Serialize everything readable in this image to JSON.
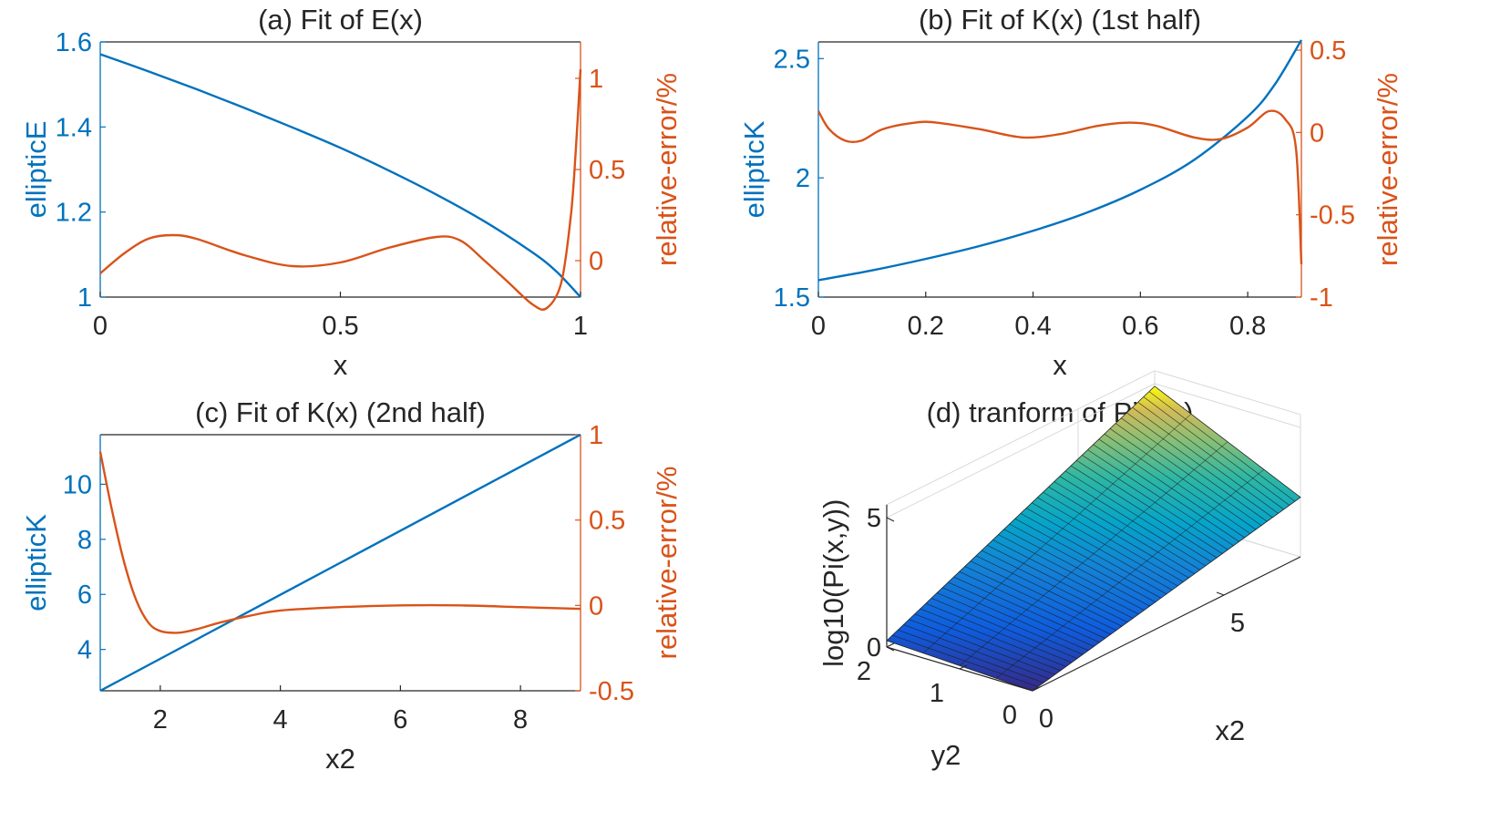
{
  "colors": {
    "blue": "#0072BD",
    "orange": "#D95319",
    "axis": "#262626"
  },
  "chart_data": [
    {
      "id": "a",
      "type": "line",
      "title": "(a) Fit of E(x)",
      "xlabel": "x",
      "ylabel_left": "ellipticE",
      "ylabel_right": "relative-error/%",
      "xlim": [
        0,
        1
      ],
      "ylim_left": [
        1,
        1.6
      ],
      "ylim_right": [
        -0.2,
        1.2
      ],
      "xticks": [
        "0",
        "0.5",
        "1"
      ],
      "xtick_values": [
        0,
        0.5,
        1
      ],
      "yticks_left": [
        "1",
        "1.2",
        "1.4",
        "1.6"
      ],
      "ytick_values_left": [
        1,
        1.2,
        1.4,
        1.6
      ],
      "yticks_right": [
        "0",
        "0.5",
        "1"
      ],
      "ytick_values_right": [
        0,
        0.5,
        1
      ],
      "series": [
        {
          "name": "ellipticE",
          "axis": "left",
          "color": "#0072BD",
          "x": [
            0,
            0.1,
            0.2,
            0.3,
            0.4,
            0.5,
            0.6,
            0.7,
            0.8,
            0.9,
            0.95,
            1
          ],
          "y": [
            1.571,
            1.531,
            1.489,
            1.445,
            1.399,
            1.351,
            1.298,
            1.241,
            1.178,
            1.105,
            1.06,
            1.0
          ]
        },
        {
          "name": "relative-error",
          "axis": "right",
          "color": "#D95319",
          "x": [
            0,
            0.05,
            0.1,
            0.15,
            0.2,
            0.3,
            0.4,
            0.5,
            0.6,
            0.7,
            0.75,
            0.8,
            0.85,
            0.9,
            0.93,
            0.96,
            0.98,
            0.99,
            1
          ],
          "y": [
            -0.07,
            0.04,
            0.12,
            0.14,
            0.12,
            0.03,
            -0.03,
            -0.01,
            0.07,
            0.13,
            0.11,
            0.0,
            -0.12,
            -0.24,
            -0.26,
            -0.12,
            0.25,
            0.6,
            1.05
          ]
        }
      ]
    },
    {
      "id": "b",
      "type": "line",
      "title": "(b) Fit of K(x) (1st half)",
      "xlabel": "x",
      "ylabel_left": "ellipticK",
      "ylabel_right": "relative-error/%",
      "xlim": [
        0,
        0.9
      ],
      "ylim_left": [
        1.5,
        2.57
      ],
      "ylim_right": [
        -1,
        0.55
      ],
      "xticks": [
        "0",
        "0.2",
        "0.4",
        "0.6",
        "0.8"
      ],
      "xtick_values": [
        0,
        0.2,
        0.4,
        0.6,
        0.8
      ],
      "yticks_left": [
        "1.5",
        "2",
        "2.5"
      ],
      "ytick_values_left": [
        1.5,
        2,
        2.5
      ],
      "yticks_right": [
        "-1",
        "-0.5",
        "0",
        "0.5"
      ],
      "ytick_values_right": [
        -1,
        -0.5,
        0,
        0.5
      ],
      "series": [
        {
          "name": "ellipticK",
          "axis": "left",
          "color": "#0072BD",
          "x": [
            0,
            0.1,
            0.2,
            0.3,
            0.4,
            0.5,
            0.6,
            0.7,
            0.8,
            0.85,
            0.9
          ],
          "y": [
            1.571,
            1.612,
            1.66,
            1.714,
            1.778,
            1.854,
            1.95,
            2.075,
            2.257,
            2.39,
            2.578
          ]
        },
        {
          "name": "relative-error",
          "axis": "right",
          "color": "#D95319",
          "x": [
            0,
            0.02,
            0.05,
            0.08,
            0.12,
            0.18,
            0.22,
            0.3,
            0.38,
            0.45,
            0.52,
            0.58,
            0.63,
            0.7,
            0.75,
            0.8,
            0.84,
            0.87,
            0.89,
            0.9
          ],
          "y": [
            0.13,
            0.02,
            -0.05,
            -0.05,
            0.02,
            0.06,
            0.06,
            0.02,
            -0.03,
            -0.01,
            0.04,
            0.06,
            0.04,
            -0.03,
            -0.04,
            0.03,
            0.13,
            0.08,
            -0.1,
            -0.8
          ]
        }
      ]
    },
    {
      "id": "c",
      "type": "line",
      "title": "(c) Fit of K(x) (2nd half)",
      "xlabel": "x2",
      "ylabel_left": "ellipticK",
      "ylabel_right": "relative-error/%",
      "xlim": [
        1,
        9
      ],
      "ylim_left": [
        2.5,
        11.8
      ],
      "ylim_right": [
        -0.5,
        1
      ],
      "xticks": [
        "2",
        "4",
        "6",
        "8"
      ],
      "xtick_values": [
        2,
        4,
        6,
        8
      ],
      "yticks_left": [
        "4",
        "6",
        "8",
        "10"
      ],
      "ytick_values_left": [
        4,
        6,
        8,
        10
      ],
      "yticks_right": [
        "-0.5",
        "0",
        "0.5",
        "1"
      ],
      "ytick_values_right": [
        -0.5,
        0,
        0.5,
        1
      ],
      "series": [
        {
          "name": "ellipticK",
          "axis": "left",
          "color": "#0072BD",
          "x": [
            1,
            9
          ],
          "y": [
            2.5,
            11.8
          ]
        },
        {
          "name": "relative-error",
          "axis": "right",
          "color": "#D95319",
          "x": [
            1,
            1.2,
            1.4,
            1.6,
            1.8,
            2.0,
            2.3,
            2.6,
            3,
            3.5,
            4,
            5,
            6,
            7,
            8,
            9
          ],
          "y": [
            0.9,
            0.55,
            0.25,
            0.03,
            -0.1,
            -0.15,
            -0.16,
            -0.14,
            -0.1,
            -0.06,
            -0.03,
            -0.01,
            0.0,
            0.0,
            -0.01,
            -0.02
          ]
        }
      ]
    },
    {
      "id": "d",
      "type": "surface",
      "title": "(d) tranform of Pi(x,y)",
      "xlabel": "x2",
      "ylabel": "y2",
      "zlabel": "log10(Pi(x,y))",
      "xlim": [
        0,
        7
      ],
      "ylim": [
        0,
        2
      ],
      "zlim": [
        0,
        5.5
      ],
      "xticks": [
        "0",
        "5"
      ],
      "xtick_values": [
        0,
        5
      ],
      "yticks": [
        "0",
        "1",
        "2"
      ],
      "ytick_values": [
        0,
        1,
        2
      ],
      "zticks": [
        "0",
        "5"
      ],
      "ztick_values": [
        0,
        5
      ],
      "colormap": "parula",
      "z_corners": {
        "x0_y0": 0.0,
        "x0_y2": 0.25,
        "x7_y0": 2.3,
        "x7_y2": 4.9
      }
    }
  ]
}
